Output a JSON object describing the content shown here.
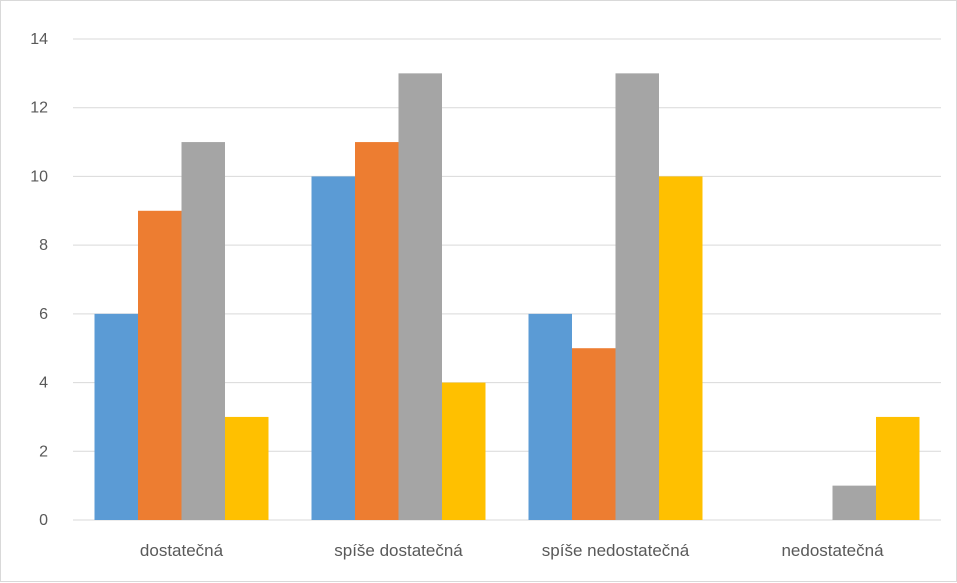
{
  "chart_data": {
    "type": "bar",
    "categories": [
      "dostatečná",
      "spíše dostatečná",
      "spíše nedostatečná",
      "nedostatečná"
    ],
    "series": [
      {
        "values": [
          6,
          10,
          6,
          0
        ],
        "color": "#5b9bd5"
      },
      {
        "values": [
          9,
          11,
          5,
          0
        ],
        "color": "#ed7d31"
      },
      {
        "values": [
          11,
          13,
          13,
          1
        ],
        "color": "#a5a5a5"
      },
      {
        "values": [
          3,
          4,
          10,
          3
        ],
        "color": "#ffc000"
      }
    ],
    "yticks": [
      0,
      2,
      4,
      6,
      8,
      10,
      12,
      14
    ],
    "ylim": [
      0,
      14
    ],
    "grid": true,
    "legend": false,
    "gridline_color": "#d9d9d9"
  }
}
